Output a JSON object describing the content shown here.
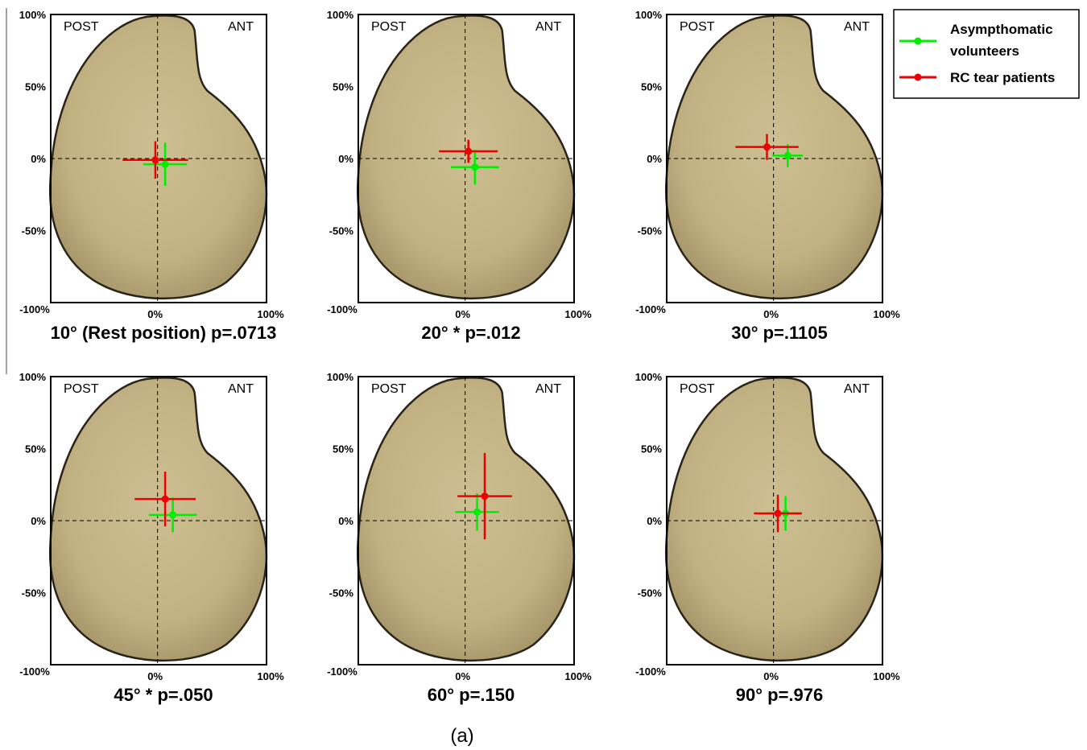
{
  "figure_label": "(a)",
  "legend": [
    {
      "name": "Asympthomatic",
      "name2": "volunteers",
      "color": "#00ee00"
    },
    {
      "name": "RC tear patients",
      "name2": "",
      "color": "#ee0000"
    }
  ],
  "colors": {
    "shape_fill": "#c8b88a",
    "shape_edge": "#2a2418"
  },
  "chart_data": [
    {
      "type": "scatter",
      "title": "10° (Rest position) p=.0713",
      "corner_left": "POST",
      "corner_right": "ANT",
      "xlim": [
        -100,
        100
      ],
      "ylim": [
        -100,
        100
      ],
      "y_ticks": [
        "100%",
        "50%",
        "0%",
        "-50%",
        "-100%"
      ],
      "x_ticks": [
        "0%",
        "100%"
      ],
      "series": [
        {
          "name": "Asympthomatic volunteers",
          "color": "#00ee00",
          "x": 7,
          "y": -4,
          "xerr": 20,
          "yerr": 15
        },
        {
          "name": "RC tear patients",
          "color": "#ee0000",
          "x": -2,
          "y": -1,
          "xerr": 30,
          "yerr": 13
        }
      ]
    },
    {
      "type": "scatter",
      "title": "20° * p=.012",
      "corner_left": "POST",
      "corner_right": "ANT",
      "xlim": [
        -100,
        100
      ],
      "ylim": [
        -100,
        100
      ],
      "y_ticks": [
        "100%",
        "50%",
        "0%",
        "-50%",
        "-100%"
      ],
      "x_ticks": [
        "0%",
        "100%"
      ],
      "series": [
        {
          "name": "Asympthomatic volunteers",
          "color": "#00ee00",
          "x": 9,
          "y": -6,
          "xerr": 22,
          "yerr": 12
        },
        {
          "name": "RC tear patients",
          "color": "#ee0000",
          "x": 3,
          "y": 5,
          "xerr": 27,
          "yerr": 8
        }
      ]
    },
    {
      "type": "scatter",
      "title": "30° p=.1105",
      "corner_left": "POST",
      "corner_right": "ANT",
      "xlim": [
        -100,
        100
      ],
      "ylim": [
        -100,
        100
      ],
      "y_ticks": [
        "100%",
        "50%",
        "0%",
        "-50%",
        "-100%"
      ],
      "x_ticks": [
        "0%",
        "100%"
      ],
      "series": [
        {
          "name": "Asympthomatic volunteers",
          "color": "#00ee00",
          "x": 13,
          "y": 2,
          "xerr": 14,
          "yerr": 8
        },
        {
          "name": "RC tear patients",
          "color": "#ee0000",
          "x": -6,
          "y": 8,
          "xerr": 29,
          "yerr": 9
        }
      ]
    },
    {
      "type": "scatter",
      "title": "45° * p=.050",
      "corner_left": "POST",
      "corner_right": "ANT",
      "xlim": [
        -100,
        100
      ],
      "ylim": [
        -100,
        100
      ],
      "y_ticks": [
        "100%",
        "50%",
        "0%",
        "-50%",
        "-100%"
      ],
      "x_ticks": [
        "0%",
        "100%"
      ],
      "series": [
        {
          "name": "Asympthomatic volunteers",
          "color": "#00ee00",
          "x": 14,
          "y": 4,
          "xerr": 22,
          "yerr": 12
        },
        {
          "name": "RC tear patients",
          "color": "#ee0000",
          "x": 7,
          "y": 15,
          "xerr": 28,
          "yerr": 19
        }
      ]
    },
    {
      "type": "scatter",
      "title": "60° p=.150",
      "corner_left": "POST",
      "corner_right": "ANT",
      "xlim": [
        -100,
        100
      ],
      "ylim": [
        -100,
        100
      ],
      "y_ticks": [
        "100%",
        "50%",
        "0%",
        "-50%",
        "-100%"
      ],
      "x_ticks": [
        "0%",
        "100%"
      ],
      "series": [
        {
          "name": "Asympthomatic volunteers",
          "color": "#00ee00",
          "x": 11,
          "y": 6,
          "xerr": 20,
          "yerr": 13
        },
        {
          "name": "RC tear patients",
          "color": "#ee0000",
          "x": 18,
          "y": 17,
          "xerr": 25,
          "yerr": 30
        }
      ]
    },
    {
      "type": "scatter",
      "title": "90°  p=.976",
      "corner_left": "POST",
      "corner_right": "ANT",
      "xlim": [
        -100,
        100
      ],
      "ylim": [
        -100,
        100
      ],
      "y_ticks": [
        "100%",
        "50%",
        "0%",
        "-50%",
        "-100%"
      ],
      "x_ticks": [
        "0%",
        "100%"
      ],
      "series": [
        {
          "name": "Asympthomatic volunteers",
          "color": "#00ee00",
          "x": 11,
          "y": 5,
          "xerr": 15,
          "yerr": 12
        },
        {
          "name": "RC tear patients",
          "color": "#ee0000",
          "x": 4,
          "y": 5,
          "xerr": 22,
          "yerr": 13
        }
      ]
    }
  ]
}
